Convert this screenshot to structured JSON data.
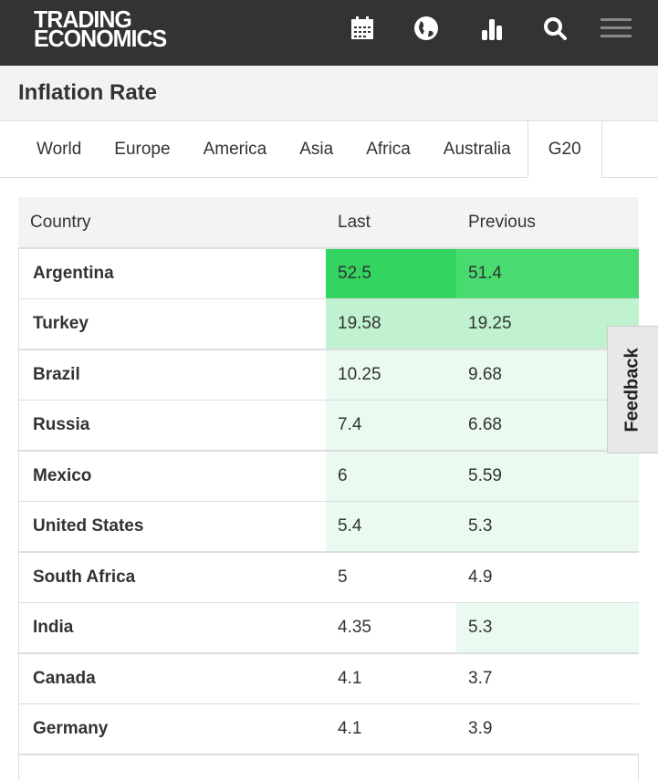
{
  "header": {
    "logo_line1": "TRADING",
    "logo_line2": "ECONOMICS",
    "icons": [
      "calendar-icon",
      "globe-icon",
      "bar-chart-icon",
      "search-icon",
      "menu-icon"
    ]
  },
  "title": "Inflation Rate",
  "tabs": [
    {
      "label": "World"
    },
    {
      "label": "Europe"
    },
    {
      "label": "America"
    },
    {
      "label": "Asia"
    },
    {
      "label": "Africa"
    },
    {
      "label": "Australia"
    },
    {
      "label": "G20",
      "active": true
    }
  ],
  "table": {
    "columns": [
      "Country",
      "Last",
      "Previous"
    ],
    "rows": [
      {
        "country": "Argentina",
        "last": "52.5",
        "previous": "51.4",
        "last_bg": "#33d45f",
        "prev_bg": "#48db6f"
      },
      {
        "country": "Turkey",
        "last": "19.58",
        "previous": "19.25",
        "last_bg": "#c0f2d0",
        "prev_bg": "#c0f2d0"
      },
      {
        "country": "Brazil",
        "last": "10.25",
        "previous": "9.68",
        "last_bg": "#eafaf0",
        "prev_bg": "#eafaf0"
      },
      {
        "country": "Russia",
        "last": "7.4",
        "previous": "6.68",
        "last_bg": "#eafaf0",
        "prev_bg": "#eafaf0"
      },
      {
        "country": "Mexico",
        "last": "6",
        "previous": "5.59",
        "last_bg": "#eafaf0",
        "prev_bg": "#eafaf0"
      },
      {
        "country": "United States",
        "last": "5.4",
        "previous": "5.3",
        "last_bg": "#eafaf0",
        "prev_bg": "#eafaf0"
      },
      {
        "country": "South Africa",
        "last": "5",
        "previous": "4.9",
        "last_bg": "#ffffff",
        "prev_bg": "#ffffff"
      },
      {
        "country": "India",
        "last": "4.35",
        "previous": "5.3",
        "last_bg": "#ffffff",
        "prev_bg": "#eafaf0"
      },
      {
        "country": "Canada",
        "last": "4.1",
        "previous": "3.7",
        "last_bg": "#ffffff",
        "prev_bg": "#ffffff"
      },
      {
        "country": "Germany",
        "last": "4.1",
        "previous": "3.9",
        "last_bg": "#ffffff",
        "prev_bg": "#ffffff"
      }
    ]
  },
  "feedback": "Feedback"
}
